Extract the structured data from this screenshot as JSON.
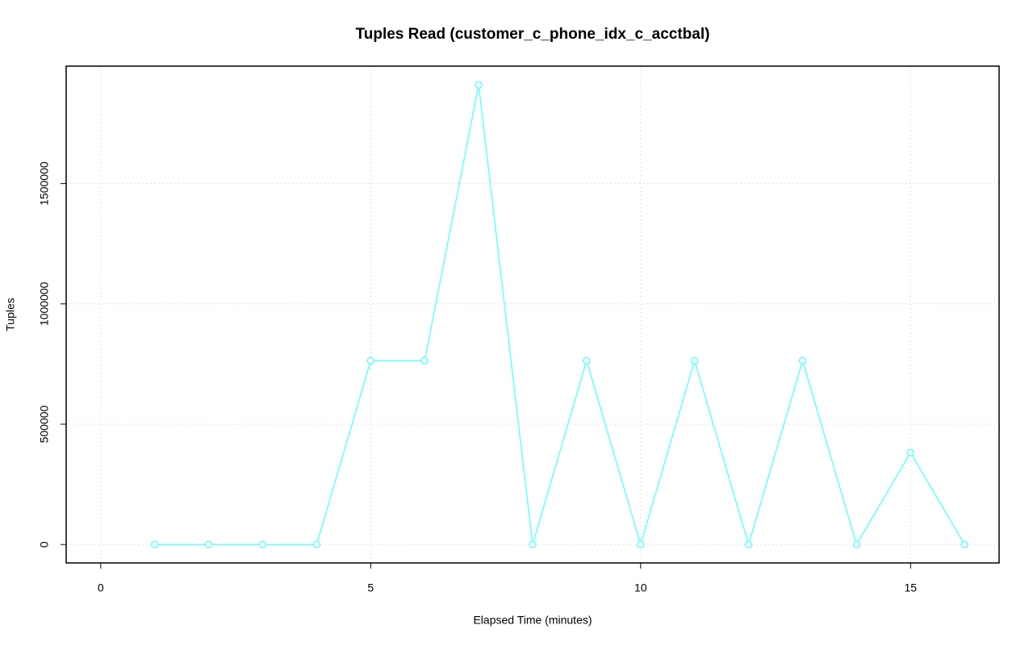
{
  "chart_data": {
    "type": "line",
    "title": "Tuples Read (customer_c_phone_idx_c_acctbal)",
    "x_label": "Elapsed Time (minutes)",
    "y_label": "Tuples",
    "x": [
      1,
      2,
      3,
      4,
      5,
      6,
      7,
      8,
      9,
      10,
      11,
      12,
      13,
      14,
      15,
      16
    ],
    "series": [
      {
        "color": "#66ffff",
        "values": [
          0,
          0,
          0,
          0,
          764000,
          764000,
          1910000,
          0,
          764000,
          0,
          764000,
          0,
          764000,
          0,
          382000,
          0
        ]
      }
    ],
    "xlim": [
      -0.64,
      16.64
    ],
    "xticks": [
      0,
      5,
      10,
      15
    ],
    "ylim": [
      -76500,
      1988000
    ],
    "yticks": [
      0,
      500000,
      1000000,
      1500000
    ],
    "grid": true
  }
}
